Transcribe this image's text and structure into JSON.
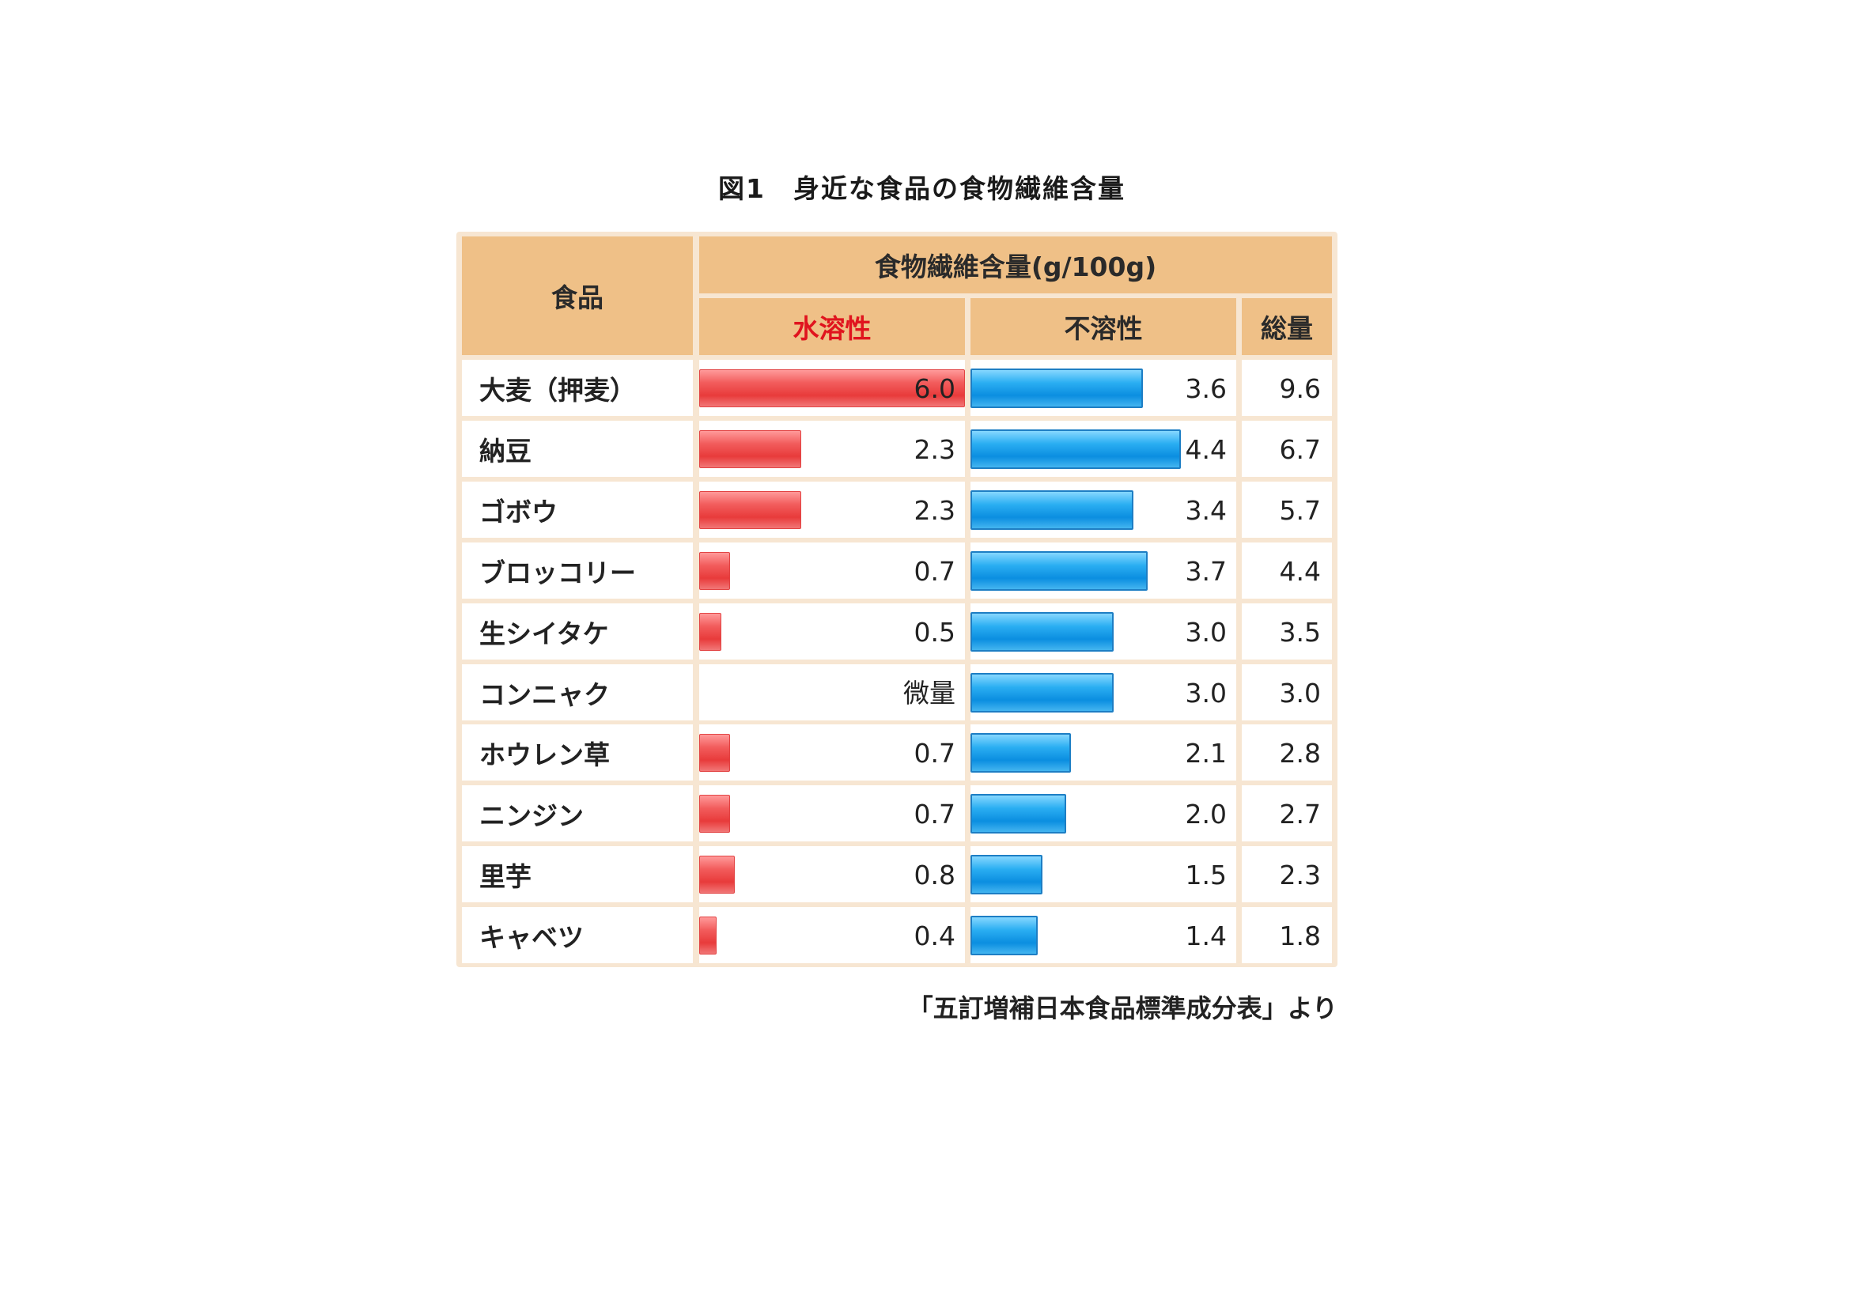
{
  "title": "図1　身近な食品の食物繊維含量",
  "header": {
    "food": "食品",
    "group": "食物繊維含量(g/100g)",
    "soluble": "水溶性",
    "insoluble": "不溶性",
    "total": "総量"
  },
  "source": "「五訂増補日本食品標準成分表」より",
  "colors": {
    "soluble": "#e83b3b",
    "insoluble": "#0b8ee0",
    "header_bg": "#efc087",
    "soluble_header_text": "#e0141e"
  },
  "chart_data": {
    "type": "table",
    "columns": [
      "食品",
      "水溶性",
      "不溶性",
      "総量"
    ],
    "rows": [
      {
        "food": "大麦（押麦）",
        "soluble": 6.0,
        "soluble_label": "6.0",
        "insoluble": 3.6,
        "insoluble_label": "3.6",
        "total_label": "9.6"
      },
      {
        "food": "納豆",
        "soluble": 2.3,
        "soluble_label": "2.3",
        "insoluble": 4.4,
        "insoluble_label": "4.4",
        "total_label": "6.7"
      },
      {
        "food": "ゴボウ",
        "soluble": 2.3,
        "soluble_label": "2.3",
        "insoluble": 3.4,
        "insoluble_label": "3.4",
        "total_label": "5.7"
      },
      {
        "food": "ブロッコリー",
        "soluble": 0.7,
        "soluble_label": "0.7",
        "insoluble": 3.7,
        "insoluble_label": "3.7",
        "total_label": "4.4"
      },
      {
        "food": "生シイタケ",
        "soluble": 0.5,
        "soluble_label": "0.5",
        "insoluble": 3.0,
        "insoluble_label": "3.0",
        "total_label": "3.5"
      },
      {
        "food": "コンニャク",
        "soluble": 0,
        "soluble_label": "微量",
        "insoluble": 3.0,
        "insoluble_label": "3.0",
        "total_label": "3.0"
      },
      {
        "food": "ホウレン草",
        "soluble": 0.7,
        "soluble_label": "0.7",
        "insoluble": 2.1,
        "insoluble_label": "2.1",
        "total_label": "2.8"
      },
      {
        "food": "ニンジン",
        "soluble": 0.7,
        "soluble_label": "0.7",
        "insoluble": 2.0,
        "insoluble_label": "2.0",
        "total_label": "2.7"
      },
      {
        "food": "里芋",
        "soluble": 0.8,
        "soluble_label": "0.8",
        "insoluble": 1.5,
        "insoluble_label": "1.5",
        "total_label": "2.3"
      },
      {
        "food": "キャベツ",
        "soluble": 0.4,
        "soluble_label": "0.4",
        "insoluble": 1.4,
        "insoluble_label": "1.4",
        "total_label": "1.8"
      }
    ],
    "soluble_max": 6.0,
    "insoluble_max": 4.4
  }
}
